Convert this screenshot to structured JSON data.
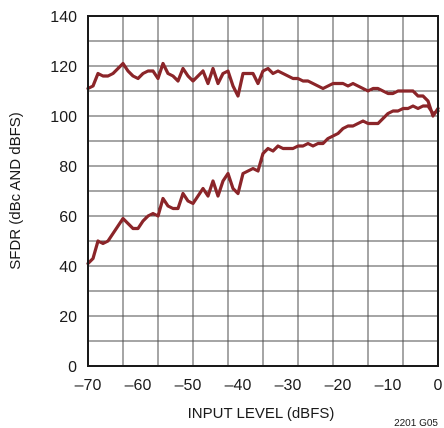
{
  "chart_data": {
    "type": "line",
    "title": "",
    "xlabel": "INPUT LEVEL (dBFS)",
    "ylabel": "SFDR (dBc AND dBFS)",
    "xlim": [
      -70,
      0
    ],
    "ylim": [
      0,
      140
    ],
    "xticks": [
      -70,
      -60,
      -50,
      -40,
      -30,
      -20,
      -10,
      0
    ],
    "yticks": [
      0,
      20,
      40,
      60,
      80,
      100,
      120,
      140
    ],
    "xtick_labels": [
      "–70",
      "–60",
      "–50",
      "–40",
      "–30",
      "–20",
      "–10",
      "0"
    ],
    "ytick_labels": [
      "0",
      "20",
      "40",
      "60",
      "80",
      "100",
      "120",
      "140"
    ],
    "grid": true,
    "line_color": "#8b2529",
    "series": [
      {
        "x": [
          -70,
          -69,
          -68,
          -67,
          -66,
          -65,
          -64,
          -63,
          -62,
          -61,
          -60,
          -59,
          -58,
          -57,
          -56,
          -55,
          -54,
          -53,
          -52,
          -51,
          -50,
          -49,
          -48,
          -47,
          -46,
          -45,
          -44,
          -43,
          -42,
          -41,
          -40,
          -39,
          -38,
          -37,
          -36,
          -35,
          -34,
          -33,
          -32,
          -31,
          -30,
          -29,
          -28,
          -27,
          -26,
          -25,
          -24,
          -23,
          -22,
          -21,
          -20,
          -19,
          -18,
          -17,
          -16,
          -15,
          -14,
          -13,
          -12,
          -11,
          -10,
          -9,
          -8,
          -7,
          -6,
          -5,
          -4,
          -3,
          -2,
          -1,
          0
        ],
        "values": [
          111,
          112,
          117,
          116,
          116,
          117,
          119,
          121,
          118,
          116,
          115,
          117,
          118,
          118,
          115,
          121,
          117,
          116,
          114,
          119,
          116,
          114,
          116,
          118,
          113,
          119,
          113,
          117,
          118,
          112,
          108,
          117,
          117,
          117,
          113,
          118,
          119,
          117,
          118,
          117,
          116,
          115,
          115,
          114,
          114,
          113,
          112,
          111,
          112,
          113,
          113,
          113,
          112,
          113,
          112,
          111,
          110,
          111,
          111,
          110,
          109,
          109,
          110,
          110,
          110,
          110,
          108,
          108,
          106,
          100,
          103
        ]
      },
      {
        "x": [
          -70,
          -69,
          -68,
          -67,
          -66,
          -65,
          -64,
          -63,
          -62,
          -61,
          -60,
          -59,
          -58,
          -57,
          -56,
          -55,
          -54,
          -53,
          -52,
          -51,
          -50,
          -49,
          -48,
          -47,
          -46,
          -45,
          -44,
          -43,
          -42,
          -41,
          -40,
          -39,
          -38,
          -37,
          -36,
          -35,
          -34,
          -33,
          -32,
          -31,
          -30,
          -29,
          -28,
          -27,
          -26,
          -25,
          -24,
          -23,
          -22,
          -21,
          -20,
          -19,
          -18,
          -17,
          -16,
          -15,
          -14,
          -13,
          -12,
          -11,
          -10,
          -9,
          -8,
          -7,
          -6,
          -5,
          -4,
          -3,
          -2,
          -1,
          0
        ],
        "values": [
          41,
          43,
          50,
          49,
          50,
          53,
          56,
          59,
          57,
          55,
          55,
          58,
          60,
          61,
          60,
          67,
          64,
          63,
          63,
          69,
          66,
          65,
          68,
          71,
          68,
          74,
          68,
          74,
          77,
          71,
          69,
          77,
          78,
          79,
          78,
          85,
          87,
          86,
          88,
          87,
          87,
          87,
          88,
          88,
          89,
          88,
          89,
          89,
          91,
          92,
          93,
          95,
          96,
          96,
          97,
          98,
          97,
          97,
          97,
          99,
          101,
          102,
          102,
          103,
          103,
          104,
          103,
          104,
          104,
          101,
          102
        ]
      }
    ],
    "annotations": [
      "2201 G05"
    ]
  }
}
